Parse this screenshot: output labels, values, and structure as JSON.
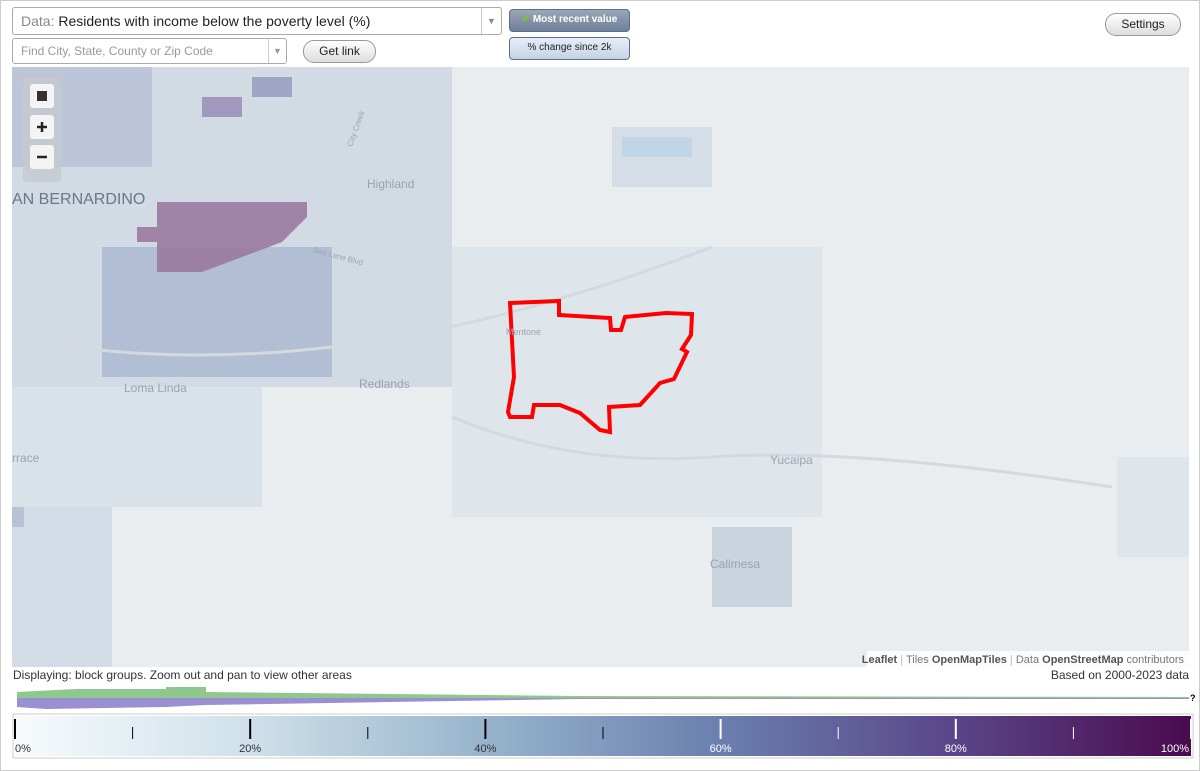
{
  "toolbar": {
    "data_label": "Data:",
    "data_value": "Residents with income below the poverty level (%)",
    "search_placeholder": "Find City, State, County or Zip Code",
    "get_link": "Get link",
    "mode_recent": "Most recent value",
    "mode_change": "% change since 2k",
    "settings": "Settings"
  },
  "map": {
    "labels": [
      "AN BERNARDINO",
      "Highland",
      "Redlands",
      "Loma Linda",
      "Mentone",
      "Yucaipa",
      "Calimesa",
      "rrace",
      "City Creek",
      "Sea Lane Blvd"
    ],
    "attribution": {
      "leaflet": "Leaflet",
      "sep1": "|",
      "tiles": "Tiles",
      "openmaptiles": "OpenMapTiles",
      "sep2": "|",
      "data": "Data",
      "osm": "OpenStreetMap",
      "contributors": "contributors"
    }
  },
  "footer": {
    "displaying": "Displaying: block groups. Zoom out and pan to view other areas",
    "based_on": "Based on 2000-2023 data",
    "help": "?"
  },
  "legend": {
    "range": [
      0,
      100
    ],
    "ticks": [
      {
        "value": 0,
        "label": "0%"
      },
      {
        "value": 20,
        "label": "20%"
      },
      {
        "value": 40,
        "label": "40%"
      },
      {
        "value": 60,
        "label": "60%"
      },
      {
        "value": 80,
        "label": "80%"
      },
      {
        "value": 100,
        "label": "100%"
      }
    ],
    "minor_ticks": [
      10,
      30,
      50,
      70,
      90
    ]
  }
}
